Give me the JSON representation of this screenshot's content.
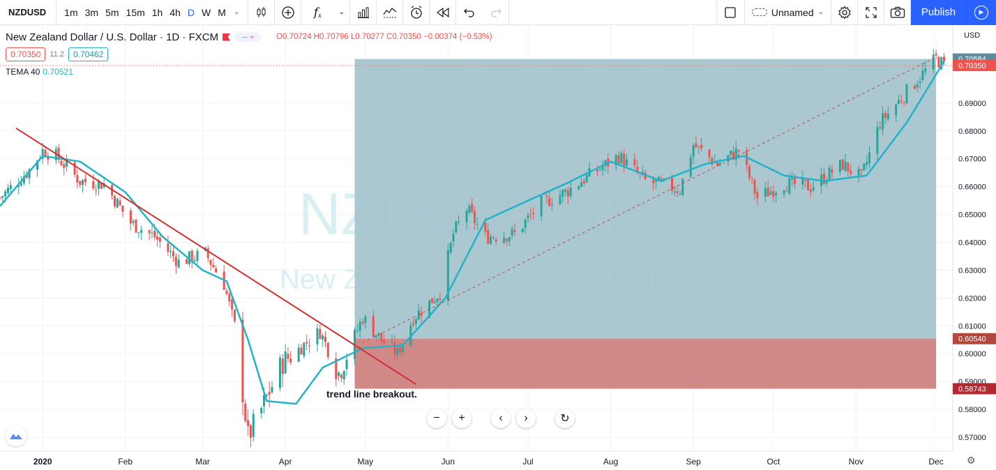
{
  "toolbar": {
    "symbol": "NZDUSD",
    "intervals": [
      "1m",
      "3m",
      "5m",
      "15m",
      "1h",
      "4h",
      "D",
      "W",
      "M"
    ],
    "active_interval": "D",
    "layout_name": "Unnamed",
    "publish_label": "Publish"
  },
  "legend": {
    "title": "New Zealand Dollar / U.S. Dollar · 1D · FXCM",
    "ohlc": "O0.70724 H0.70796 L0.70277 C0.70350 −0.00374 (−0.53%)",
    "sell_price": "0.70350",
    "spread": "11.2",
    "buy_price": "0.70462",
    "indicator_name": "TEMA 40",
    "indicator_value": "0.70521"
  },
  "watermark": {
    "symbol": "NZDUSD, 1D",
    "description": "New Zealand Dollar / U.S. Dollar"
  },
  "annotation": "trend line breakout.",
  "price_axis": {
    "currency": "USD",
    "ticks": [
      "0.69000",
      "0.68000",
      "0.67000",
      "0.66000",
      "0.65000",
      "0.64000",
      "0.63000",
      "0.62000",
      "0.61000",
      "0.60000",
      "0.59000",
      "0.58000",
      "0.57000"
    ],
    "labels": [
      {
        "value": "0.70584",
        "color": "#5d8b99"
      },
      {
        "value": "0.70350",
        "color": "#ef5350"
      },
      {
        "value": "0.60540",
        "color": "#b2473e"
      },
      {
        "value": "0.58743",
        "color": "#b22833"
      }
    ]
  },
  "time_axis": [
    "2020",
    "Feb",
    "Mar",
    "Apr",
    "May",
    "Jun",
    "Jul",
    "Aug",
    "Sep",
    "Oct",
    "Nov",
    "Dec"
  ],
  "colors": {
    "up": "#26a69a",
    "down": "#ef5350",
    "tema": "#22b3c8",
    "trendline": "#d32f2f",
    "target_zone": "#a7c4ce",
    "stop_zone": "#cf8382"
  },
  "chart_data": {
    "type": "candlestick",
    "title": "New Zealand Dollar / U.S. Dollar · 1D · FXCM",
    "x_range": [
      "2019-12-16",
      "2020-12-07"
    ],
    "ylim": [
      0.565,
      0.709
    ],
    "series": [
      {
        "name": "NZDUSD",
        "close_points": [
          [
            "2019-12-16",
            0.656
          ],
          [
            "2019-12-27",
            0.666
          ],
          [
            "2020-01-01",
            0.673
          ],
          [
            "2020-01-06",
            0.671
          ],
          [
            "2020-01-15",
            0.662
          ],
          [
            "2020-01-24",
            0.661
          ],
          [
            "2020-02-03",
            0.647
          ],
          [
            "2020-02-12",
            0.642
          ],
          [
            "2020-02-21",
            0.633
          ],
          [
            "2020-03-02",
            0.636
          ],
          [
            "2020-03-09",
            0.625
          ],
          [
            "2020-03-13",
            0.61
          ],
          [
            "2020-03-18",
            0.57
          ],
          [
            "2020-03-23",
            0.58
          ],
          [
            "2020-03-31",
            0.597
          ],
          [
            "2020-04-14",
            0.608
          ],
          [
            "2020-04-21",
            0.593
          ],
          [
            "2020-04-30",
            0.613
          ],
          [
            "2020-05-07",
            0.605
          ],
          [
            "2020-05-13",
            0.6
          ],
          [
            "2020-05-19",
            0.613
          ],
          [
            "2020-05-29",
            0.622
          ],
          [
            "2020-06-03",
            0.643
          ],
          [
            "2020-06-08",
            0.652
          ],
          [
            "2020-06-15",
            0.642
          ],
          [
            "2020-06-26",
            0.643
          ],
          [
            "2020-07-06",
            0.654
          ],
          [
            "2020-07-15",
            0.658
          ],
          [
            "2020-07-24",
            0.664
          ],
          [
            "2020-08-04",
            0.671
          ],
          [
            "2020-08-14",
            0.662
          ],
          [
            "2020-08-27",
            0.659
          ],
          [
            "2020-09-01",
            0.675
          ],
          [
            "2020-09-10",
            0.668
          ],
          [
            "2020-09-18",
            0.673
          ],
          [
            "2020-09-25",
            0.656
          ],
          [
            "2020-10-05",
            0.661
          ],
          [
            "2020-10-15",
            0.66
          ],
          [
            "2020-10-27",
            0.668
          ],
          [
            "2020-11-03",
            0.663
          ],
          [
            "2020-11-10",
            0.683
          ],
          [
            "2020-11-20",
            0.694
          ],
          [
            "2020-12-01",
            0.706
          ],
          [
            "2020-12-04",
            0.7035
          ]
        ]
      },
      {
        "name": "TEMA 40",
        "points": [
          [
            "2019-12-16",
            0.653
          ],
          [
            "2020-01-01",
            0.671
          ],
          [
            "2020-01-15",
            0.669
          ],
          [
            "2020-02-01",
            0.658
          ],
          [
            "2020-02-15",
            0.642
          ],
          [
            "2020-03-01",
            0.63
          ],
          [
            "2020-03-10",
            0.626
          ],
          [
            "2020-03-18",
            0.605
          ],
          [
            "2020-03-25",
            0.583
          ],
          [
            "2020-04-05",
            0.582
          ],
          [
            "2020-04-15",
            0.595
          ],
          [
            "2020-04-30",
            0.602
          ],
          [
            "2020-05-15",
            0.603
          ],
          [
            "2020-05-31",
            0.62
          ],
          [
            "2020-06-15",
            0.648
          ],
          [
            "2020-07-01",
            0.655
          ],
          [
            "2020-07-15",
            0.661
          ],
          [
            "2020-08-01",
            0.669
          ],
          [
            "2020-08-20",
            0.662
          ],
          [
            "2020-09-05",
            0.668
          ],
          [
            "2020-09-20",
            0.671
          ],
          [
            "2020-10-05",
            0.664
          ],
          [
            "2020-10-20",
            0.662
          ],
          [
            "2020-11-05",
            0.664
          ],
          [
            "2020-11-20",
            0.683
          ],
          [
            "2020-12-04",
            0.705
          ]
        ]
      }
    ],
    "trendline": [
      [
        "2019-12-22",
        0.681
      ],
      [
        "2020-05-20",
        0.589
      ]
    ],
    "position": {
      "type": "long",
      "start": "2020-04-27",
      "end": "2020-12-01",
      "entry": 0.6054,
      "stop": 0.58743,
      "target": 0.70584
    },
    "projection_line": [
      [
        "2020-04-30",
        0.604
      ],
      [
        "2020-12-01",
        0.7065
      ]
    ],
    "annotation": "trend line breakout.",
    "current_price": 0.7035
  }
}
